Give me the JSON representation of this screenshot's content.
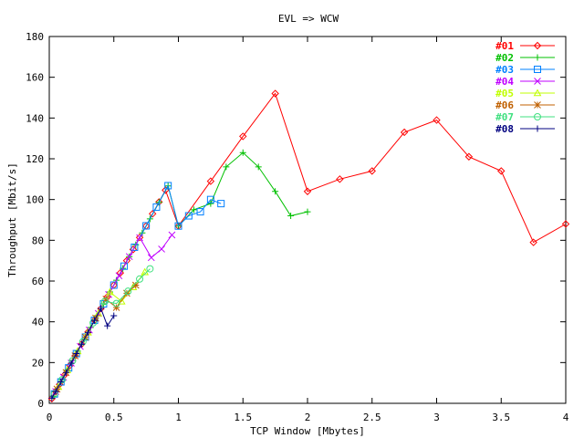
{
  "chart_data": {
    "type": "line",
    "title": "EVL => WCW",
    "xlabel": "TCP Window [Mbytes]",
    "ylabel": "Throughput [Mbit/s]",
    "xlim": [
      0,
      4
    ],
    "ylim": [
      0,
      180
    ],
    "x_ticks": [
      0,
      0.5,
      1,
      1.5,
      2,
      2.5,
      3,
      3.5,
      4
    ],
    "x_tick_labels": [
      "0",
      "0.5",
      "1",
      "1.5",
      "2",
      "2.5",
      "3",
      "3.5",
      "4"
    ],
    "y_ticks": [
      0,
      20,
      40,
      60,
      80,
      100,
      120,
      140,
      160,
      180
    ],
    "y_tick_labels": [
      "0",
      "20",
      "40",
      "60",
      "80",
      "100",
      "120",
      "140",
      "160",
      "180"
    ],
    "grid": false,
    "legend_position": "top-right",
    "series": [
      {
        "name": "#01",
        "color": "#ff0000",
        "marker": "diamond",
        "x": [
          0.02,
          0.05,
          0.08,
          0.12,
          0.16,
          0.2,
          0.25,
          0.3,
          0.35,
          0.4,
          0.45,
          0.5,
          0.55,
          0.6,
          0.65,
          0.7,
          0.75,
          0.8,
          0.85,
          0.9,
          1.0,
          1.25,
          1.5,
          1.75,
          2.0,
          2.25,
          2.5,
          2.75,
          3.0,
          3.25,
          3.5,
          3.75,
          4.0
        ],
        "y": [
          2.3,
          5.8,
          9.3,
          14,
          18.6,
          23.3,
          29,
          35,
          40.7,
          46.5,
          52.3,
          58,
          64,
          70,
          75.5,
          81.4,
          87,
          93,
          98.8,
          104.6,
          87,
          109,
          131,
          152,
          104,
          110,
          114,
          133,
          139,
          121,
          114,
          79,
          88
        ]
      },
      {
        "name": "#02",
        "color": "#00c000",
        "marker": "plus",
        "x": [
          0.03,
          0.06,
          0.1,
          0.14,
          0.18,
          0.22,
          0.27,
          0.32,
          0.37,
          0.42,
          0.47,
          0.52,
          0.57,
          0.62,
          0.67,
          0.72,
          0.78,
          0.85,
          0.92,
          1.0,
          1.12,
          1.25,
          1.37,
          1.5,
          1.62,
          1.75,
          1.87,
          2.0
        ],
        "y": [
          3.5,
          7,
          11.6,
          16.3,
          21,
          25.6,
          31.4,
          37.2,
          43,
          48.8,
          54.6,
          60.4,
          66.2,
          72,
          77.8,
          83.6,
          90.5,
          98.6,
          106.7,
          87,
          95,
          98,
          116,
          123,
          116,
          104,
          92,
          94
        ]
      },
      {
        "name": "#03",
        "color": "#0080ff",
        "marker": "square",
        "x": [
          0.04,
          0.09,
          0.15,
          0.21,
          0.28,
          0.35,
          0.42,
          0.5,
          0.58,
          0.66,
          0.75,
          0.83,
          0.92,
          1.0,
          1.08,
          1.17,
          1.25,
          1.33
        ],
        "y": [
          4.6,
          10.5,
          17.4,
          24.4,
          32.5,
          40.7,
          48.8,
          58,
          67.3,
          76.6,
          87.1,
          96.3,
          106.8,
          87,
          92,
          94,
          100,
          98
        ]
      },
      {
        "name": "#04",
        "color": "#c000ff",
        "marker": "cross",
        "x": [
          0.05,
          0.11,
          0.17,
          0.24,
          0.31,
          0.38,
          0.46,
          0.54,
          0.62,
          0.7,
          0.79,
          0.87,
          0.95
        ],
        "y": [
          5.8,
          12.8,
          19.7,
          27.9,
          36,
          44.1,
          53.4,
          62.6,
          72,
          81.3,
          71.5,
          75.7,
          82.6
        ]
      },
      {
        "name": "#05",
        "color": "#c0ff00",
        "marker": "triangle",
        "x": [
          0.07,
          0.14,
          0.22,
          0.3,
          0.38,
          0.47,
          0.56,
          0.65,
          0.74
        ],
        "y": [
          8.1,
          16.3,
          25.6,
          34.8,
          44.1,
          54.6,
          50,
          57,
          64.4
        ]
      },
      {
        "name": "#06",
        "color": "#c06000",
        "marker": "star",
        "x": [
          0.06,
          0.13,
          0.2,
          0.28,
          0.36,
          0.44,
          0.52,
          0.6,
          0.67
        ],
        "y": [
          7,
          15.1,
          23.3,
          32.5,
          41.8,
          51.1,
          47,
          54,
          58
        ]
      },
      {
        "name": "#07",
        "color": "#40e080",
        "marker": "circle",
        "x": [
          0.04,
          0.1,
          0.18,
          0.26,
          0.34,
          0.43,
          0.52,
          0.61,
          0.7,
          0.78
        ],
        "y": [
          4.6,
          11.6,
          20.9,
          30.2,
          39.5,
          50,
          49,
          55,
          61,
          66
        ]
      },
      {
        "name": "#08",
        "color": "#000080",
        "marker": "plus",
        "x": [
          0.02,
          0.05,
          0.09,
          0.13,
          0.17,
          0.21,
          0.25,
          0.3,
          0.35,
          0.4,
          0.45,
          0.5
        ],
        "y": [
          2.5,
          5.8,
          10.5,
          15.1,
          19.7,
          24.4,
          29,
          34.8,
          40.7,
          46.5,
          38,
          43
        ]
      }
    ]
  }
}
